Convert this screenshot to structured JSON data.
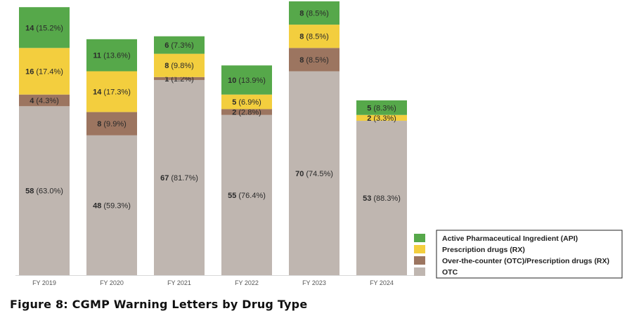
{
  "chart_data": {
    "type": "bar",
    "stacked": true,
    "categories": [
      "FY 2019",
      "FY 2020",
      "FY 2021",
      "FY 2022",
      "FY 2023",
      "FY 2024"
    ],
    "series": [
      {
        "name": "OTC",
        "color": "#bfb6b0",
        "values": [
          58,
          48,
          67,
          55,
          70,
          53
        ],
        "labels": [
          "(63.0%)",
          "(59.3%)",
          "(81.7%)",
          "(76.4%)",
          "(74.5%)",
          "(88.3%)"
        ]
      },
      {
        "name": "Over-the-counter (OTC)/Prescription drugs (RX)",
        "color": "#9c7560",
        "values": [
          4,
          8,
          1,
          2,
          8,
          0
        ],
        "labels": [
          "(4.3%)",
          "(9.9%)",
          "(1.2%)",
          "(2.8%)",
          "(8.5%)",
          ""
        ]
      },
      {
        "name": "Prescription drugs (RX)",
        "color": "#f3ce3e",
        "values": [
          16,
          14,
          8,
          5,
          8,
          2
        ],
        "labels": [
          "(17.4%)",
          "(17.3%)",
          "(9.8%)",
          "(6.9%)",
          "(8.5%)",
          "(3.3%)"
        ]
      },
      {
        "name": "Active Pharmaceutical Ingredient (API)",
        "color": "#56a84a",
        "values": [
          14,
          11,
          6,
          10,
          8,
          5
        ],
        "labels": [
          "(15.2%)",
          "(13.6%)",
          "(7.3%)",
          "(13.9%)",
          "(8.5%)",
          "(8.3%)"
        ]
      }
    ],
    "legend": {
      "position": "bottom-right",
      "order": [
        "Active Pharmaceutical Ingredient (API)",
        "Prescription drugs (RX)",
        "Over-the-counter (OTC)/Prescription drugs (RX)",
        "OTC"
      ]
    },
    "grid": false
  },
  "caption": "Figure 8: CGMP Warning Letters by Drug Type"
}
